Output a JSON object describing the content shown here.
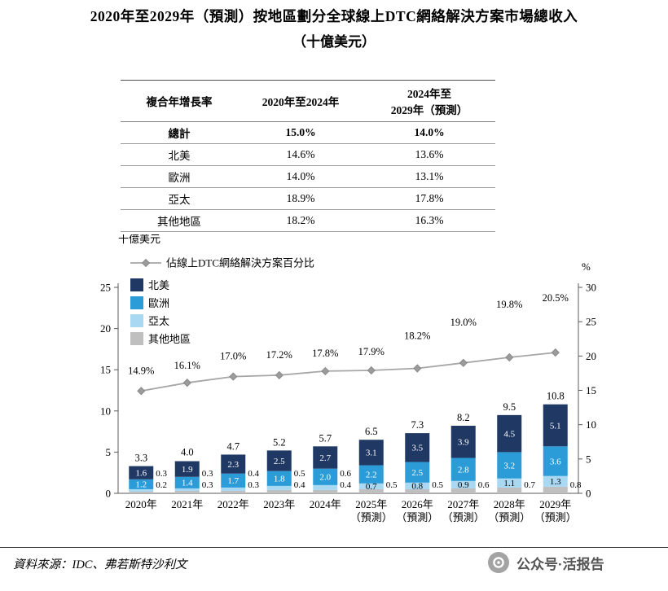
{
  "title": {
    "line1": "2020年至2029年（預測）按地區劃分全球線上DTC網絡解決方案市場總收入",
    "line2": "（十億美元）"
  },
  "table": {
    "headers": [
      "複合年增長率",
      "2020年至2024年",
      "2024年至\n2029年（預測）"
    ],
    "rows": [
      {
        "label": "總計",
        "v1": "15.0%",
        "v2": "14.0%",
        "bold": true
      },
      {
        "label": "北美",
        "v1": "14.6%",
        "v2": "13.6%",
        "bold": false
      },
      {
        "label": "歐洲",
        "v1": "14.0%",
        "v2": "13.1%",
        "bold": false
      },
      {
        "label": "亞太",
        "v1": "18.9%",
        "v2": "17.8%",
        "bold": false
      },
      {
        "label": "其他地區",
        "v1": "18.2%",
        "v2": "16.3%",
        "bold": false
      }
    ]
  },
  "chart_data": {
    "type": "bar",
    "subtype": "stacked-bar-with-line",
    "unit_label": "十億美元",
    "percent_axis_label": "%",
    "legend_line_label": "佔線上DTC網絡解決方案百分比",
    "categories": [
      [
        "2020年"
      ],
      [
        "2021年"
      ],
      [
        "2022年"
      ],
      [
        "2023年"
      ],
      [
        "2024年"
      ],
      [
        "2025年",
        "（預測）"
      ],
      [
        "2026年",
        "（預測）"
      ],
      [
        "2027年",
        "（預測）"
      ],
      [
        "2028年",
        "（預測）"
      ],
      [
        "2029年",
        "（預測）"
      ]
    ],
    "series": [
      {
        "name": "北美",
        "color": "#1f3864",
        "values": [
          1.6,
          1.9,
          2.3,
          2.5,
          2.7,
          3.1,
          3.5,
          3.9,
          4.5,
          5.1
        ]
      },
      {
        "name": "歐洲",
        "color": "#2b9cd8",
        "values": [
          1.2,
          1.4,
          1.7,
          1.8,
          2.0,
          2.2,
          2.5,
          2.8,
          3.2,
          3.6
        ]
      },
      {
        "name": "亞太",
        "color": "#a9d8f3",
        "values": [
          0.3,
          0.3,
          0.4,
          0.5,
          0.6,
          0.7,
          0.8,
          0.9,
          1.1,
          1.3
        ]
      },
      {
        "name": "其他地區",
        "color": "#bfbfbf",
        "values": [
          0.2,
          0.3,
          0.3,
          0.4,
          0.4,
          0.5,
          0.5,
          0.6,
          0.7,
          0.8
        ]
      }
    ],
    "totals": [
      3.3,
      4.0,
      4.7,
      5.2,
      5.7,
      6.5,
      7.3,
      8.2,
      9.5,
      10.8
    ],
    "line": {
      "name": "佔線上DTC網絡解決方案百分比",
      "values": [
        14.9,
        16.1,
        17.0,
        17.2,
        17.8,
        17.9,
        18.2,
        19.0,
        19.8,
        20.5
      ],
      "color": "#a6a6a6"
    },
    "ylim_left": [
      0,
      25
    ],
    "yticks_left": [
      0,
      5,
      10,
      15,
      20,
      25
    ],
    "ylim_right": [
      0,
      30
    ],
    "yticks_right": [
      0,
      5,
      10,
      15,
      20,
      25,
      30
    ],
    "grid": "off",
    "legend_position": "top-left-inside"
  },
  "footer": {
    "source_label": "資料來源：IDC、弗若斯特沙利文",
    "watermark_text": "公众号·活报告"
  }
}
